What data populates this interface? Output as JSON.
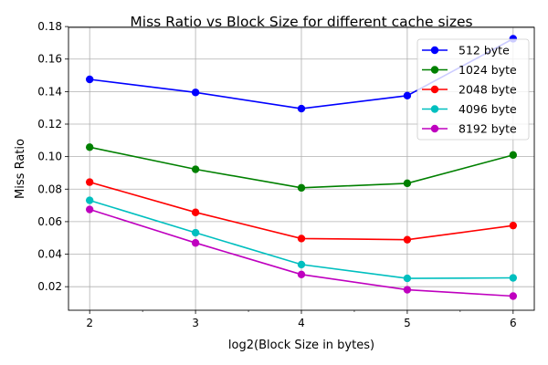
{
  "chart_data": {
    "type": "line",
    "title": "Miss Ratio vs Block Size for different cache sizes",
    "xlabel": "log2(Block Size in bytes)",
    "ylabel": "Miss Ratio",
    "x": [
      2,
      3,
      4,
      5,
      6
    ],
    "xlim": [
      1.8,
      6.2
    ],
    "ylim": [
      0.0055,
      0.1795
    ],
    "xticks": [
      "2",
      "3",
      "4",
      "5",
      "6"
    ],
    "yticks": [
      "0.02",
      "0.04",
      "0.06",
      "0.08",
      "0.10",
      "0.12",
      "0.14",
      "0.16",
      "0.18"
    ],
    "grid": true,
    "legend_position": "top-right",
    "series": [
      {
        "name": "512 byte",
        "color": "#0000ff",
        "values": [
          0.1475,
          0.1395,
          0.1295,
          0.1375,
          0.1725
        ]
      },
      {
        "name": "1024 byte",
        "color": "#008000",
        "values": [
          0.1058,
          0.0922,
          0.0808,
          0.0836,
          0.101
        ]
      },
      {
        "name": "2048 byte",
        "color": "#ff0000",
        "values": [
          0.0843,
          0.0657,
          0.0496,
          0.0489,
          0.0576
        ]
      },
      {
        "name": "4096 byte",
        "color": "#00bfbf",
        "values": [
          0.0731,
          0.0532,
          0.0336,
          0.0251,
          0.0254
        ]
      },
      {
        "name": "8192 byte",
        "color": "#bf00bf",
        "values": [
          0.0675,
          0.0469,
          0.0275,
          0.0181,
          0.0142
        ]
      }
    ]
  }
}
